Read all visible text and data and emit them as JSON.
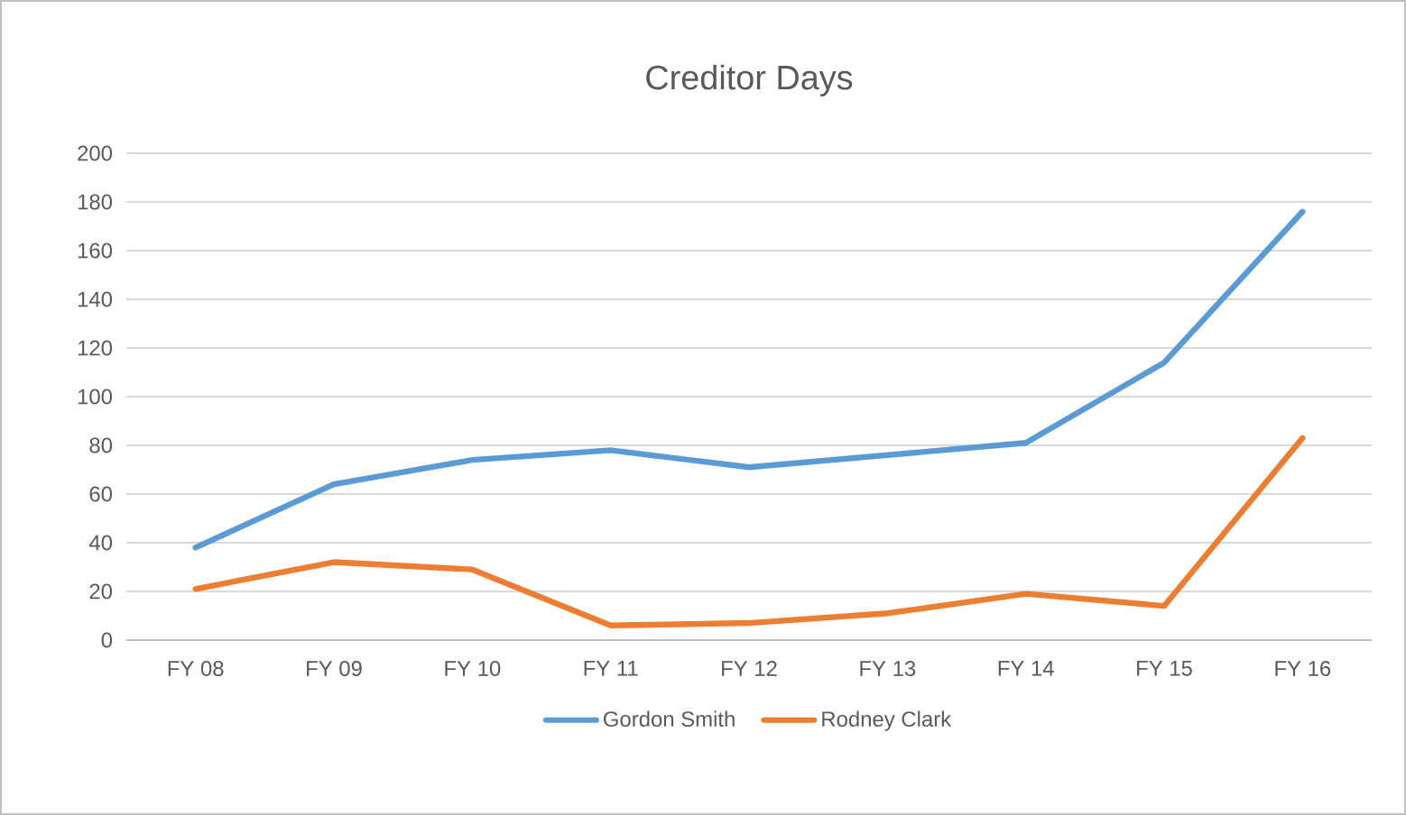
{
  "chart_data": {
    "type": "line",
    "title": "Creditor Days",
    "categories": [
      "FY 08",
      "FY 09",
      "FY 10",
      "FY 11",
      "FY 12",
      "FY 13",
      "FY 14",
      "FY 15",
      "FY 16"
    ],
    "series": [
      {
        "name": "Gordon Smith",
        "color": "#5b9bd5",
        "values": [
          38,
          64,
          74,
          78,
          71,
          76,
          81,
          114,
          176
        ]
      },
      {
        "name": "Rodney Clark",
        "color": "#ed7d31",
        "values": [
          21,
          32,
          29,
          6,
          7,
          11,
          19,
          14,
          83
        ]
      }
    ],
    "ylim": [
      0,
      200
    ],
    "yticks": [
      0,
      20,
      40,
      60,
      80,
      100,
      120,
      140,
      160,
      180,
      200
    ],
    "grid": "y",
    "legend": "bottom",
    "marker": "none"
  }
}
